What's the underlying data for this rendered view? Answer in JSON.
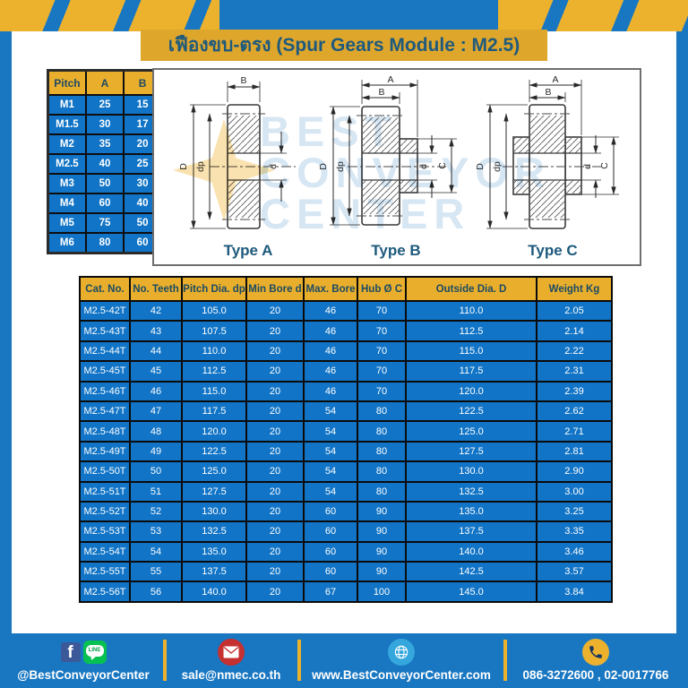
{
  "title": "เฟืองขบ-ตรง (Spur Gears Module : M2.5)",
  "pitch_table": {
    "columns": [
      "Pitch",
      "A",
      "B"
    ],
    "rows": [
      [
        "M1",
        "25",
        "15"
      ],
      [
        "M1.5",
        "30",
        "17"
      ],
      [
        "M2",
        "35",
        "20"
      ],
      [
        "M2.5",
        "40",
        "25"
      ],
      [
        "M3",
        "50",
        "30"
      ],
      [
        "M4",
        "60",
        "40"
      ],
      [
        "M5",
        "75",
        "50"
      ],
      [
        "M6",
        "80",
        "60"
      ]
    ]
  },
  "drawings": {
    "type_a_label": "Type A",
    "type_b_label": "Type B",
    "type_c_label": "Type C",
    "dim_a": "A",
    "dim_b": "B",
    "dim_c": "C",
    "dim_outer": "D",
    "dim_pitch": "dp",
    "dim_bore": "d",
    "watermark": {
      "line1": "BEST",
      "line2": "CONVEYOR",
      "line3": "CENTER"
    }
  },
  "main_table": {
    "columns": [
      "Cat. No.",
      "No. Teeth",
      "Pitch Dia. dp",
      "Min Bore d",
      "Max. Bore",
      "Hub Ø C",
      "Outside Dia. D",
      "Weight Kg"
    ],
    "rows": [
      [
        "M2.5-42T",
        "42",
        "105.0",
        "20",
        "46",
        "70",
        "110.0",
        "2.05"
      ],
      [
        "M2.5-43T",
        "43",
        "107.5",
        "20",
        "46",
        "70",
        "112.5",
        "2.14"
      ],
      [
        "M2.5-44T",
        "44",
        "110.0",
        "20",
        "46",
        "70",
        "115.0",
        "2.22"
      ],
      [
        "M2.5-45T",
        "45",
        "112.5",
        "20",
        "46",
        "70",
        "117.5",
        "2.31"
      ],
      [
        "M2.5-46T",
        "46",
        "115.0",
        "20",
        "46",
        "70",
        "120.0",
        "2.39"
      ],
      [
        "M2.5-47T",
        "47",
        "117.5",
        "20",
        "54",
        "80",
        "122.5",
        "2.62"
      ],
      [
        "M2.5-48T",
        "48",
        "120.0",
        "20",
        "54",
        "80",
        "125.0",
        "2.71"
      ],
      [
        "M2.5-49T",
        "49",
        "122.5",
        "20",
        "54",
        "80",
        "127.5",
        "2.81"
      ],
      [
        "M2.5-50T",
        "50",
        "125.0",
        "20",
        "54",
        "80",
        "130.0",
        "2.90"
      ],
      [
        "M2.5-51T",
        "51",
        "127.5",
        "20",
        "54",
        "80",
        "132.5",
        "3.00"
      ],
      [
        "M2.5-52T",
        "52",
        "130.0",
        "20",
        "60",
        "90",
        "135.0",
        "3.25"
      ],
      [
        "M2.5-53T",
        "53",
        "132.5",
        "20",
        "60",
        "90",
        "137.5",
        "3.35"
      ],
      [
        "M2.5-54T",
        "54",
        "135.0",
        "20",
        "60",
        "90",
        "140.0",
        "3.46"
      ],
      [
        "M2.5-55T",
        "55",
        "137.5",
        "20",
        "60",
        "90",
        "142.5",
        "3.57"
      ],
      [
        "M2.5-56T",
        "56",
        "140.0",
        "20",
        "67",
        "100",
        "145.0",
        "3.84"
      ]
    ]
  },
  "footer": {
    "facebook_label": "f",
    "line_label": "LINE",
    "social_handle": "@BestConveyorCenter",
    "email": "sale@nmec.co.th",
    "website": "www.BestConveyorCenter.com",
    "phones": "086-3272600 , 02-0017766"
  },
  "colors": {
    "brand_blue": "#1977c2",
    "hazard_yellow": "#ecb22e",
    "title_yellow": "#dfa62c",
    "table_header_yellow": "#e9af2c",
    "table_cell_blue": "#1174c6",
    "dark_blue_text": "#1e5a7d"
  }
}
